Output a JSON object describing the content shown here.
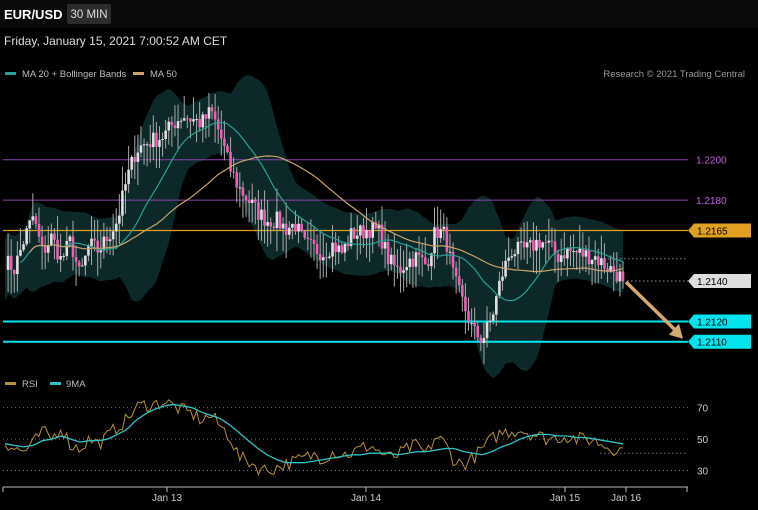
{
  "header": {
    "symbol": "EUR/USD",
    "timeframe": "30 MIN",
    "datetime": "Friday, January 15, 2021 7:00:52 AM CET"
  },
  "legend": {
    "ma20_label": "MA 20 + Bollinger Bands",
    "ma50_label": "MA 50",
    "copyright": "Research © 2021 Trading Central",
    "rsi_label": "RSI",
    "rsi_ma_label": "9MA"
  },
  "colors": {
    "background": "#000000",
    "up_candle": "#e0e0e0",
    "down_candle": "#ef5fb8",
    "bollinger_fill": "#0d2a2a",
    "ma20": "#2aa198",
    "ma50": "#c9a36a",
    "resistance": "#8e44ad",
    "pivot": "#e0a020",
    "support": "#00e5ee",
    "arrow": "#d4a870",
    "rsi": "#b8903a",
    "rsi_ma": "#2fc2c6"
  },
  "chart_data": [
    {
      "type": "candlestick",
      "symbol": "EUR/USD",
      "timeframe": "30 MIN",
      "x_ticks": [
        "Jan 13",
        "Jan 14",
        "Jan 15",
        "Jan 16"
      ],
      "y_range": [
        1.2097,
        1.2232
      ],
      "levels": [
        {
          "value": 1.22,
          "label": "1.2200",
          "kind": "resistance"
        },
        {
          "value": 1.218,
          "label": "1.2180",
          "kind": "resistance"
        },
        {
          "value": 1.2165,
          "label": "1.2165",
          "kind": "pivot"
        },
        {
          "value": 1.214,
          "label": "1.2140",
          "kind": "last"
        },
        {
          "value": 1.212,
          "label": "1.2120",
          "kind": "support"
        },
        {
          "value": 1.211,
          "label": "1.2110",
          "kind": "support"
        }
      ],
      "close_path": [
        1.215,
        1.2146,
        1.216,
        1.2172,
        1.2154,
        1.2162,
        1.215,
        1.216,
        1.2142,
        1.2158,
        1.2155,
        1.2162,
        1.217,
        1.219,
        1.2205,
        1.2208,
        1.221,
        1.2212,
        1.2218,
        1.2222,
        1.222,
        1.2218,
        1.2224,
        1.2212,
        1.2196,
        1.2186,
        1.218,
        1.2174,
        1.217,
        1.217,
        1.2166,
        1.2168,
        1.2158,
        1.2156,
        1.2154,
        1.2158,
        1.2154,
        1.2163,
        1.2164,
        1.2166,
        1.2164,
        1.215,
        1.2145,
        1.215,
        1.2152,
        1.2148,
        1.2165,
        1.2163,
        1.214,
        1.2128,
        1.2115,
        1.2111,
        1.2122,
        1.2142,
        1.2155,
        1.2155,
        1.2156,
        1.216,
        1.2158,
        1.2152,
        1.2155,
        1.2154,
        1.2153,
        1.2152,
        1.2148,
        1.2145,
        1.2141
      ],
      "annotations": [
        {
          "type": "arrow",
          "direction": "down",
          "target": 1.211
        }
      ]
    },
    {
      "type": "line",
      "name": "RSI",
      "y_ticks": [
        70,
        50,
        30
      ],
      "ylim": [
        24,
        78
      ],
      "series": [
        {
          "name": "RSI",
          "values": [
            48,
            44,
            42,
            47,
            55,
            50,
            58,
            46,
            44,
            50,
            47,
            52,
            58,
            62,
            70,
            72,
            72,
            74,
            71,
            68,
            66,
            62,
            65,
            58,
            52,
            38,
            36,
            32,
            30,
            32,
            34,
            36,
            38,
            40,
            38,
            42,
            40,
            41,
            44,
            46,
            42,
            38,
            40,
            44,
            46,
            40,
            52,
            47,
            36,
            34,
            38,
            44,
            50,
            54,
            55,
            56,
            54,
            52,
            50,
            51,
            52,
            50,
            50,
            49,
            46,
            44,
            43
          ]
        },
        {
          "name": "9MA",
          "values": [
            47,
            46,
            45,
            46,
            49,
            50,
            52,
            50,
            48,
            49,
            49,
            50,
            53,
            56,
            62,
            66,
            69,
            71,
            72,
            71,
            70,
            67,
            65,
            63,
            59,
            54,
            49,
            44,
            40,
            37,
            35,
            35,
            35,
            36,
            37,
            38,
            39,
            40,
            40,
            41,
            41,
            41,
            40,
            41,
            42,
            42,
            43,
            44,
            44,
            42,
            41,
            40,
            42,
            45,
            47,
            50,
            52,
            53,
            53,
            52,
            52,
            51,
            51,
            50,
            49,
            48,
            47
          ]
        }
      ]
    }
  ]
}
